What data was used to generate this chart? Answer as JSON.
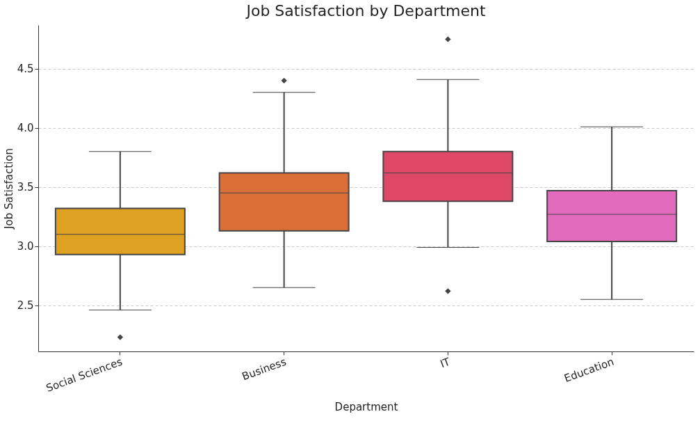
{
  "chart_data": {
    "type": "box",
    "title": "Job Satisfaction by Department",
    "xlabel": "Department",
    "ylabel": "Job Satisfaction",
    "categories": [
      "Social Sciences",
      "Business",
      "IT",
      "Education"
    ],
    "colors": [
      "#dfa121",
      "#da6f38",
      "#dd4867",
      "#e26bbd"
    ],
    "boxes": [
      {
        "low": 2.46,
        "q1": 2.93,
        "median": 3.1,
        "q3": 3.32,
        "high": 3.8,
        "outliers": [
          2.23
        ]
      },
      {
        "low": 2.65,
        "q1": 3.13,
        "median": 3.45,
        "q3": 3.62,
        "high": 4.3,
        "outliers": [
          4.4
        ]
      },
      {
        "low": 2.99,
        "q1": 3.38,
        "median": 3.62,
        "q3": 3.8,
        "high": 4.41,
        "outliers": [
          4.75,
          2.62
        ]
      },
      {
        "low": 2.55,
        "q1": 3.04,
        "median": 3.27,
        "q3": 3.47,
        "high": 4.01
      }
    ],
    "marker": "diamond",
    "ylim": [
      2.11,
      4.87
    ],
    "yticks": [
      2.5,
      {
        "value": 3,
        "label": "3.0"
      },
      3.5,
      {
        "value": 4,
        "label": "4.0"
      },
      4.5
    ],
    "grid": "y"
  }
}
